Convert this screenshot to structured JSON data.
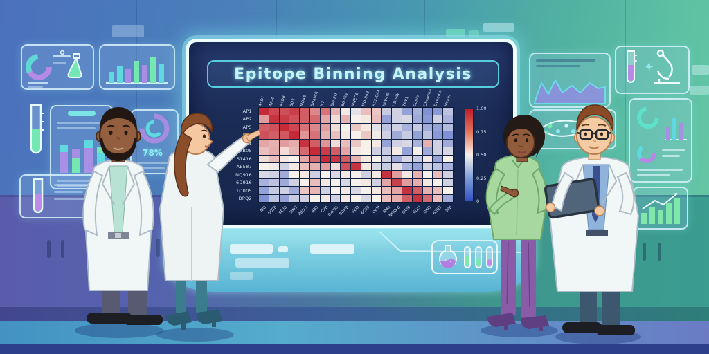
{
  "screen": {
    "title": "Epitope Binning Analysis"
  },
  "left_wall": {
    "gauge_value": "78%"
  },
  "chart_data": {
    "type": "heatmap",
    "title": "Epitope Binning Analysis",
    "row_labels": [
      "AP1",
      "AP2",
      "AP5",
      "P04",
      "EP1",
      "EB05",
      "S1416",
      "AE587",
      "NQ916",
      "6D916",
      "1O005",
      "DPQ2"
    ],
    "col_labels_top": [
      "ASD1",
      "AP-4",
      "A4DB",
      "8D2",
      "MD46",
      "BNatBR",
      "N7",
      "BW-EO",
      "BOV0a",
      "MNEC6",
      "MD-843",
      "B72-C44",
      "KPV4W",
      "UDI9W",
      "TPV1",
      "Conie",
      "Dbratine",
      "Dvbudio",
      "Mknol"
    ],
    "col_labels_bottom": [
      "N/B",
      "0O2B",
      "9E3B",
      "DKI3",
      "BBU-1",
      "AB3",
      "CXB",
      "DX036",
      "BDMB",
      "6EI0",
      "6CB9",
      "OEI9",
      "Mdb",
      "NMIB-B",
      "OINB",
      "6D/3",
      "OKI3",
      "63Q3",
      "30B"
    ],
    "colorbar_ticks": [
      "1.00",
      "0.75",
      "0.50",
      "0.25",
      "0"
    ],
    "value_range": [
      0,
      1
    ],
    "legend_position": "right",
    "colors": {
      "high": "#c11d2c",
      "mid": "#f6f1ea",
      "low": "#3353c6"
    },
    "values": [
      [
        0.97,
        0.9,
        0.88,
        0.92,
        0.85,
        0.75,
        0.8,
        0.65,
        0.52,
        0.45,
        0.62,
        0.6,
        0.38,
        0.4,
        0.25,
        0.3,
        0.2,
        0.22,
        0.35
      ],
      [
        0.7,
        0.95,
        0.93,
        0.88,
        0.85,
        0.82,
        0.68,
        0.55,
        0.65,
        0.5,
        0.52,
        0.62,
        0.25,
        0.4,
        0.42,
        0.28,
        0.22,
        0.4,
        0.3
      ],
      [
        0.85,
        0.88,
        0.97,
        0.9,
        0.8,
        0.75,
        0.7,
        0.55,
        0.5,
        0.6,
        0.52,
        0.45,
        0.35,
        0.4,
        0.3,
        0.38,
        0.28,
        0.25,
        0.33
      ],
      [
        0.88,
        0.85,
        0.86,
        0.97,
        0.72,
        0.8,
        0.65,
        0.62,
        0.52,
        0.5,
        0.6,
        0.48,
        0.4,
        0.28,
        0.38,
        0.25,
        0.35,
        0.22,
        0.2
      ],
      [
        0.68,
        0.65,
        0.7,
        0.66,
        0.95,
        0.85,
        0.72,
        0.55,
        0.62,
        0.6,
        0.5,
        0.52,
        0.25,
        0.4,
        0.42,
        0.3,
        0.65,
        0.4,
        0.28
      ],
      [
        0.62,
        0.66,
        0.55,
        0.64,
        0.82,
        0.97,
        0.93,
        0.85,
        0.68,
        0.52,
        0.5,
        0.4,
        0.38,
        0.52,
        0.25,
        0.5,
        0.28,
        0.4,
        0.42
      ],
      [
        0.55,
        0.62,
        0.52,
        0.5,
        0.68,
        0.82,
        0.97,
        0.94,
        0.85,
        0.65,
        0.52,
        0.5,
        0.4,
        0.28,
        0.42,
        0.38,
        0.52,
        0.25,
        0.5
      ],
      [
        0.5,
        0.48,
        0.4,
        0.52,
        0.62,
        0.65,
        0.7,
        0.55,
        0.88,
        0.95,
        0.52,
        0.42,
        0.38,
        0.45,
        0.3,
        0.25,
        0.4,
        0.35,
        0.3
      ],
      [
        0.42,
        0.4,
        0.28,
        0.5,
        0.52,
        0.4,
        0.5,
        0.42,
        0.52,
        0.5,
        0.4,
        0.52,
        0.95,
        0.7,
        0.52,
        0.65,
        0.5,
        0.62,
        0.4
      ],
      [
        0.3,
        0.35,
        0.28,
        0.4,
        0.5,
        0.62,
        0.52,
        0.5,
        0.42,
        0.5,
        0.52,
        0.4,
        0.68,
        0.92,
        0.7,
        0.66,
        0.52,
        0.5,
        0.4
      ],
      [
        0.25,
        0.38,
        0.4,
        0.28,
        0.6,
        0.64,
        0.4,
        0.5,
        0.52,
        0.42,
        0.5,
        0.52,
        0.62,
        0.68,
        0.95,
        0.85,
        0.65,
        0.62,
        0.5
      ],
      [
        0.2,
        0.35,
        0.25,
        0.38,
        0.4,
        0.5,
        0.52,
        0.4,
        0.52,
        0.5,
        0.42,
        0.5,
        0.62,
        0.66,
        0.85,
        0.95,
        0.82,
        0.62,
        0.28
      ]
    ]
  },
  "accent_colors": {
    "screen_glow": "#8fe3ee",
    "cyan": "#5fd8e0",
    "purple": "#a98fe4",
    "green": "#74e8b0",
    "wall_left": "#4b71bd",
    "wall_right": "#5cc0a2",
    "cabinet_left": "#5a5cab",
    "cabinet_right": "#3a9d90"
  },
  "icons": {
    "donut-chart-icon": "ring-segments",
    "bar-chart-icon": "vertical-bars",
    "flask-icon": "erlenmeyer-flask",
    "round-flask-icon": "boiling-flask",
    "test-tube-icon": "tube-with-liquid",
    "gauge-icon": "donut-gauge",
    "area-chart-icon": "mountain-area",
    "microscope-icon": "microscope",
    "petri-dish-icon": "oval-with-dots",
    "trend-arrow-icon": "up-right-arrow",
    "sparkle-icon": "four-point-star",
    "tablet-icon": "slate-tablet"
  }
}
